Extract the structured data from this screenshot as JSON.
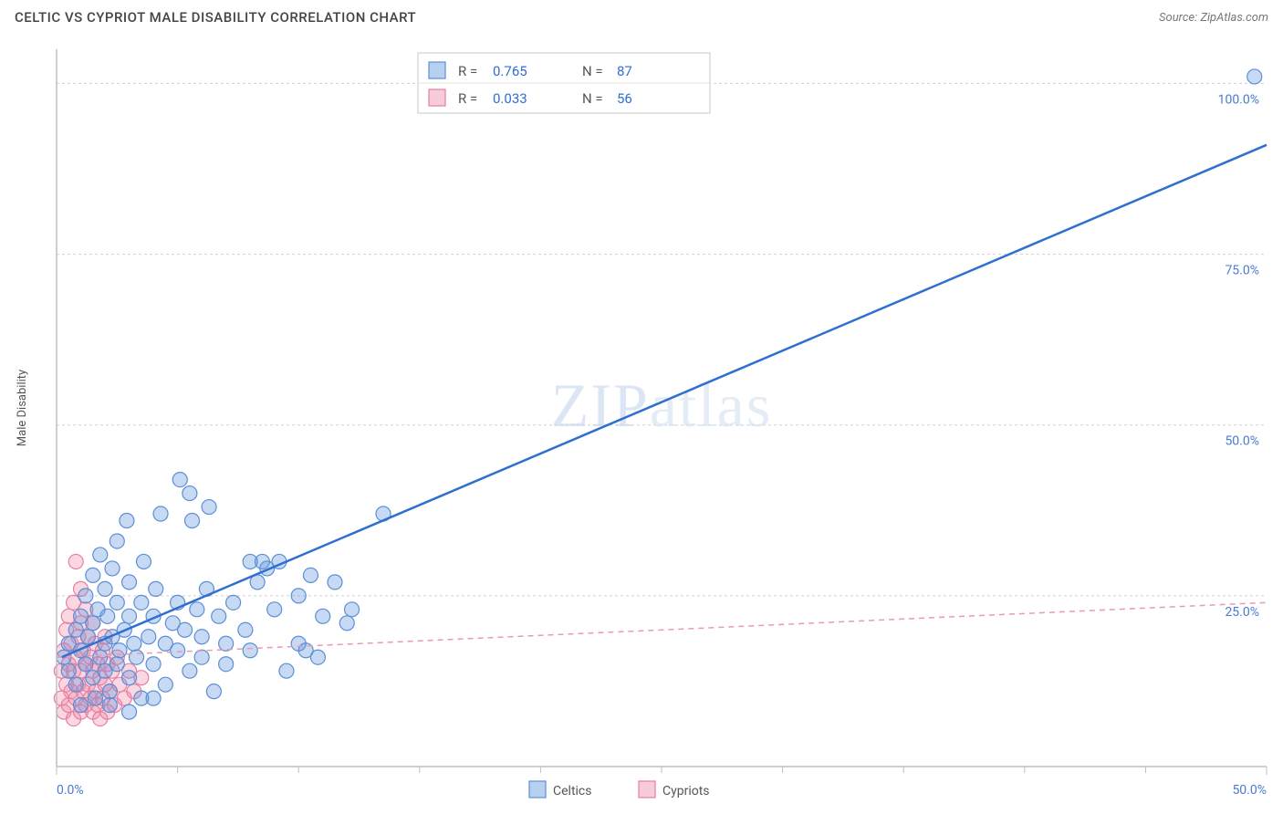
{
  "header": {
    "title": "CELTIC VS CYPRIOT MALE DISABILITY CORRELATION CHART",
    "source_prefix": "Source: ",
    "source_name": "ZipAtlas.com"
  },
  "watermark": {
    "zip": "ZIP",
    "atlas": "atlas"
  },
  "chart": {
    "type": "scatter",
    "xlim": [
      0,
      50
    ],
    "ylim": [
      0,
      105
    ],
    "x_ticks_major": [
      0,
      50
    ],
    "x_ticks_minor": [
      5,
      10,
      15,
      20,
      25,
      30,
      35,
      40,
      45
    ],
    "x_tick_labels": {
      "0": "0.0%",
      "50": "50.0%"
    },
    "y_ticks": [
      25,
      50,
      75,
      100
    ],
    "y_tick_labels": {
      "25": "25.0%",
      "50": "50.0%",
      "75": "75.0%",
      "100": "100.0%"
    },
    "y_axis_label": "Male Disability",
    "background_color": "#ffffff",
    "grid_color": "#d0d0d0",
    "axis_color": "#bfbfbf",
    "marker_radius": 8,
    "series": [
      {
        "name": "Celtics",
        "color_fill": "rgba(96,150,220,0.35)",
        "color_stroke": "#5a8fd6",
        "trend_color": "#2f6fd0",
        "trend_width": 2.5,
        "trend_dash": "none",
        "trend_line": {
          "x1": 0.2,
          "y1": 16,
          "x2": 50,
          "y2": 91
        },
        "R": "0.765",
        "N": "87",
        "points": [
          [
            0.3,
            16
          ],
          [
            0.5,
            18
          ],
          [
            0.5,
            14
          ],
          [
            0.8,
            20
          ],
          [
            0.8,
            12
          ],
          [
            1.0,
            22
          ],
          [
            1.0,
            17
          ],
          [
            1.0,
            9
          ],
          [
            1.2,
            25
          ],
          [
            1.2,
            15
          ],
          [
            1.3,
            19
          ],
          [
            1.5,
            28
          ],
          [
            1.5,
            13
          ],
          [
            1.5,
            21
          ],
          [
            1.6,
            10
          ],
          [
            1.7,
            23
          ],
          [
            1.8,
            16
          ],
          [
            1.8,
            31
          ],
          [
            2.0,
            18
          ],
          [
            2.0,
            26
          ],
          [
            2.0,
            14
          ],
          [
            2.1,
            22
          ],
          [
            2.2,
            11
          ],
          [
            2.3,
            29
          ],
          [
            2.3,
            19
          ],
          [
            2.5,
            33
          ],
          [
            2.5,
            15
          ],
          [
            2.5,
            24
          ],
          [
            2.6,
            17
          ],
          [
            2.8,
            20
          ],
          [
            2.9,
            36
          ],
          [
            3.0,
            13
          ],
          [
            3.0,
            27
          ],
          [
            3.0,
            22
          ],
          [
            3.2,
            18
          ],
          [
            3.3,
            16
          ],
          [
            3.5,
            24
          ],
          [
            3.5,
            10
          ],
          [
            3.6,
            30
          ],
          [
            3.8,
            19
          ],
          [
            4.0,
            22
          ],
          [
            4.0,
            15
          ],
          [
            4.1,
            26
          ],
          [
            4.3,
            37
          ],
          [
            4.5,
            18
          ],
          [
            4.5,
            12
          ],
          [
            4.8,
            21
          ],
          [
            5.0,
            24
          ],
          [
            5.0,
            17
          ],
          [
            5.3,
            20
          ],
          [
            5.5,
            40
          ],
          [
            5.5,
            14
          ],
          [
            5.6,
            36
          ],
          [
            5.8,
            23
          ],
          [
            6.0,
            19
          ],
          [
            6.0,
            16
          ],
          [
            6.2,
            26
          ],
          [
            6.5,
            11
          ],
          [
            6.7,
            22
          ],
          [
            7.0,
            18
          ],
          [
            7.0,
            15
          ],
          [
            7.3,
            24
          ],
          [
            7.8,
            20
          ],
          [
            8.0,
            17
          ],
          [
            8.0,
            30
          ],
          [
            8.3,
            27
          ],
          [
            8.5,
            30
          ],
          [
            8.7,
            29
          ],
          [
            9.0,
            23
          ],
          [
            9.2,
            30
          ],
          [
            9.5,
            14
          ],
          [
            10.0,
            18
          ],
          [
            10.0,
            25
          ],
          [
            10.3,
            17
          ],
          [
            10.5,
            28
          ],
          [
            10.8,
            16
          ],
          [
            11.0,
            22
          ],
          [
            11.5,
            27
          ],
          [
            13.5,
            37
          ],
          [
            12.2,
            23
          ],
          [
            12.0,
            21
          ],
          [
            5.1,
            42
          ],
          [
            6.3,
            38
          ],
          [
            4.0,
            10
          ],
          [
            3.0,
            8
          ],
          [
            2.2,
            9
          ],
          [
            49.5,
            101
          ]
        ]
      },
      {
        "name": "Cypriots",
        "color_fill": "rgba(240,140,170,0.35)",
        "color_stroke": "#e67fa3",
        "trend_color": "#e89ab3",
        "trend_width": 1.5,
        "trend_dash": "6 5",
        "trend_line": {
          "x1": 0,
          "y1": 16,
          "x2": 50,
          "y2": 24
        },
        "R": "0.033",
        "N": "56",
        "points": [
          [
            0.2,
            10
          ],
          [
            0.2,
            14
          ],
          [
            0.3,
            8
          ],
          [
            0.3,
            17
          ],
          [
            0.4,
            12
          ],
          [
            0.4,
            20
          ],
          [
            0.5,
            9
          ],
          [
            0.5,
            15
          ],
          [
            0.5,
            22
          ],
          [
            0.6,
            11
          ],
          [
            0.6,
            18
          ],
          [
            0.7,
            7
          ],
          [
            0.7,
            14
          ],
          [
            0.7,
            24
          ],
          [
            0.8,
            10
          ],
          [
            0.8,
            16
          ],
          [
            0.8,
            30
          ],
          [
            0.9,
            12
          ],
          [
            0.9,
            19
          ],
          [
            1.0,
            8
          ],
          [
            1.0,
            14
          ],
          [
            1.0,
            21
          ],
          [
            1.0,
            26
          ],
          [
            1.1,
            11
          ],
          [
            1.1,
            17
          ],
          [
            1.2,
            9
          ],
          [
            1.2,
            15
          ],
          [
            1.2,
            23
          ],
          [
            1.3,
            12
          ],
          [
            1.3,
            19
          ],
          [
            1.4,
            10
          ],
          [
            1.4,
            16
          ],
          [
            1.5,
            8
          ],
          [
            1.5,
            14
          ],
          [
            1.5,
            21
          ],
          [
            1.6,
            11
          ],
          [
            1.6,
            18
          ],
          [
            1.7,
            9
          ],
          [
            1.7,
            15
          ],
          [
            1.8,
            7
          ],
          [
            1.8,
            13
          ],
          [
            1.9,
            10
          ],
          [
            1.9,
            17
          ],
          [
            2.0,
            12
          ],
          [
            2.0,
            19
          ],
          [
            2.1,
            8
          ],
          [
            2.1,
            15
          ],
          [
            2.2,
            11
          ],
          [
            2.3,
            14
          ],
          [
            2.4,
            9
          ],
          [
            2.5,
            16
          ],
          [
            2.6,
            12
          ],
          [
            2.8,
            10
          ],
          [
            3.0,
            14
          ],
          [
            3.2,
            11
          ],
          [
            3.5,
            13
          ]
        ]
      }
    ],
    "legend_top": {
      "rows": [
        {
          "swatch": "blue",
          "r_label": "R =",
          "r_val": "0.765",
          "n_label": "N =",
          "n_val": "87"
        },
        {
          "swatch": "pink",
          "r_label": "R =",
          "r_val": "0.033",
          "n_label": "N =",
          "n_val": "56"
        }
      ]
    },
    "legend_bottom": {
      "items": [
        {
          "swatch": "blue",
          "label": "Celtics"
        },
        {
          "swatch": "pink",
          "label": "Cypriots"
        }
      ]
    }
  }
}
